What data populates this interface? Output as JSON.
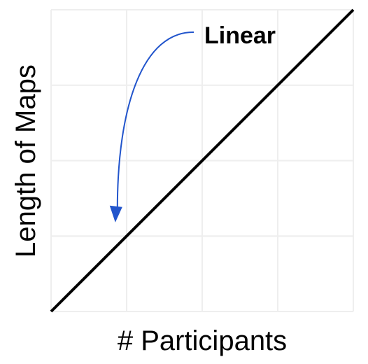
{
  "chart_data": {
    "type": "line",
    "title": "",
    "xlabel": "# Participants",
    "ylabel": "Length of Maps",
    "xlim": [
      0,
      4
    ],
    "ylim": [
      0,
      4
    ],
    "grid": true,
    "show_tick_labels": false,
    "series": [
      {
        "x": [
          0,
          4
        ],
        "y": [
          0,
          4
        ]
      }
    ],
    "annotations": [
      {
        "text": "Linear",
        "points_to": {
          "x": 0.85,
          "y": 1.2
        }
      }
    ],
    "colors": {
      "line": "#000000",
      "grid": "#eeeeee",
      "arrow": "#2255cc",
      "axis_text": "#000000"
    }
  }
}
